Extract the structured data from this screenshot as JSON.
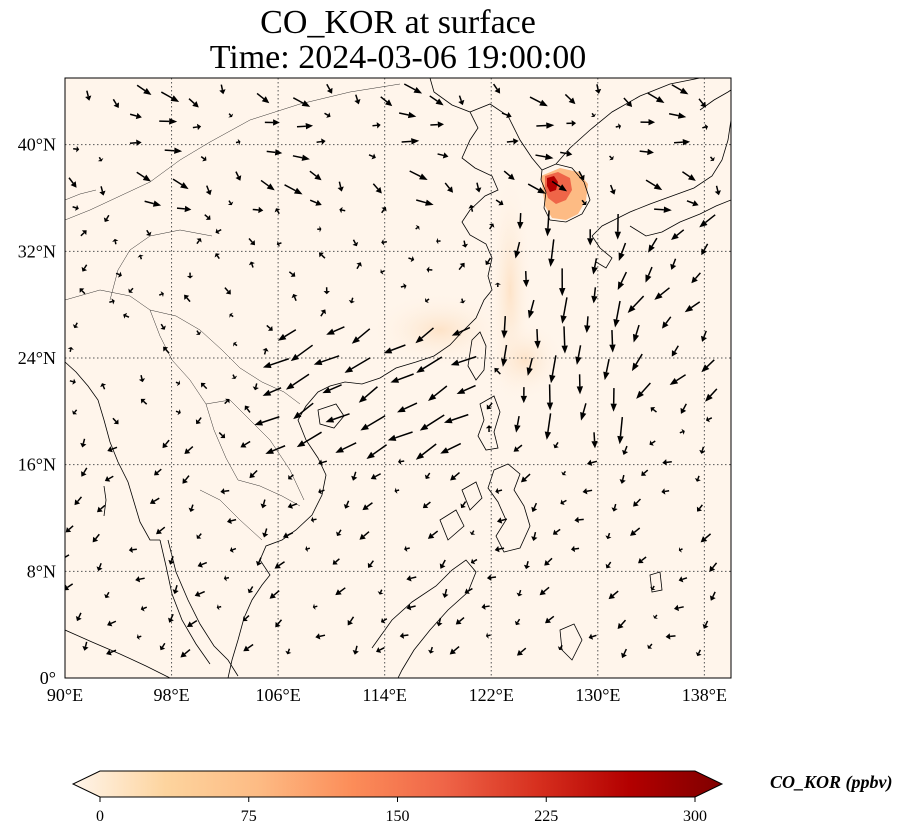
{
  "title": {
    "line1": "CO_KOR at surface",
    "line2": "Time: 2024-03-06 19:00:00"
  },
  "map": {
    "lon_range": [
      90,
      140
    ],
    "lat_range": [
      0,
      45
    ],
    "lon_ticks": [
      90,
      98,
      106,
      114,
      122,
      130,
      138
    ],
    "lon_tick_labels": [
      "90°E",
      "98°E",
      "106°E",
      "114°E",
      "122°E",
      "130°E",
      "138°E"
    ],
    "lat_ticks": [
      0,
      8,
      16,
      24,
      32,
      40
    ],
    "lat_tick_labels": [
      "0°",
      "8°N",
      "16°N",
      "24°N",
      "32°N",
      "40°N"
    ],
    "gridlines": true,
    "background_color": "#fff5eb"
  },
  "colorbar": {
    "label": "CO_KOR (ppbv)",
    "range": [
      0,
      300
    ],
    "ticks": [
      0,
      75,
      150,
      225,
      300
    ],
    "tick_labels": [
      "0",
      "75",
      "150",
      "225",
      "300"
    ],
    "colormap": "OrRd",
    "colors": [
      "#fff5eb",
      "#fdd49e",
      "#fdbb84",
      "#fc8d59",
      "#ef6548",
      "#d7301f",
      "#b30000",
      "#7f0000"
    ]
  },
  "plume_colors": {
    "korea_peak": "#b30000",
    "korea_high": "#ef6548",
    "korea_mid": "#fdbb84",
    "haze": "#fde8d2"
  }
}
